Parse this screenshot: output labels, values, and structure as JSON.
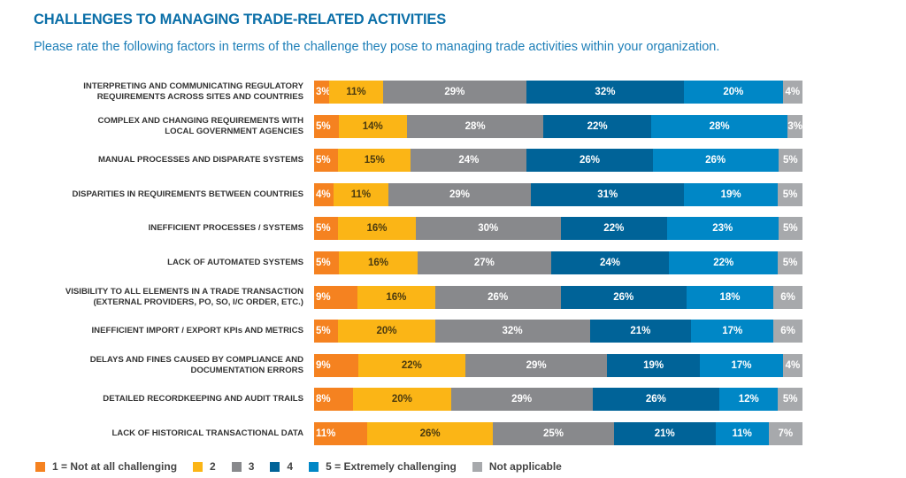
{
  "title": "CHALLENGES TO MANAGING TRADE-RELATED ACTIVITIES",
  "subtitle": "Please rate the following factors in terms of the challenge they pose to managing trade activities within your organization.",
  "chart_data": {
    "type": "bar",
    "stacked": true,
    "orientation": "horizontal",
    "title": "CHALLENGES TO MANAGING TRADE-RELATED ACTIVITIES",
    "categories": [
      [
        "INTERPRETING AND COMMUNICATING REGULATORY",
        "REQUIREMENTS ACROSS SITES AND COUNTRIES"
      ],
      [
        "COMPLEX AND CHANGING REQUIREMENTS WITH",
        "LOCAL GOVERNMENT AGENCIES"
      ],
      [
        "MANUAL PROCESSES AND DISPARATE SYSTEMS"
      ],
      [
        "DISPARITIES IN REQUIREMENTS BETWEEN COUNTRIES"
      ],
      [
        "INEFFICIENT PROCESSES / SYSTEMS"
      ],
      [
        "LACK OF AUTOMATED SYSTEMS"
      ],
      [
        "VISIBILITY TO ALL ELEMENTS IN A TRADE TRANSACTION",
        "(EXTERNAL PROVIDERS, PO, SO, I/C ORDER, ETC.)"
      ],
      [
        "INEFFICIENT IMPORT / EXPORT KPIs AND METRICS"
      ],
      [
        "DELAYS AND FINES CAUSED BY COMPLIANCE AND",
        "DOCUMENTATION ERRORS"
      ],
      [
        "DETAILED RECORDKEEPING AND AUDIT TRAILS"
      ],
      [
        "LACK OF HISTORICAL TRANSACTIONAL DATA"
      ]
    ],
    "series": [
      {
        "name": "1 = Not at all challenging",
        "color": "#f58220",
        "values": [
          3,
          5,
          5,
          4,
          5,
          5,
          9,
          5,
          9,
          8,
          11
        ]
      },
      {
        "name": "2",
        "color": "#fbb516",
        "values": [
          11,
          14,
          15,
          11,
          16,
          16,
          16,
          20,
          22,
          20,
          26
        ]
      },
      {
        "name": "3",
        "color": "#88898c",
        "values": [
          29,
          28,
          24,
          29,
          30,
          27,
          26,
          32,
          29,
          29,
          25
        ]
      },
      {
        "name": "4",
        "color": "#006398",
        "values": [
          32,
          22,
          26,
          31,
          22,
          24,
          26,
          21,
          19,
          26,
          21
        ]
      },
      {
        "name": "5 = Extremely challenging",
        "color": "#0087c6",
        "values": [
          20,
          28,
          26,
          19,
          23,
          22,
          18,
          17,
          17,
          12,
          11
        ]
      },
      {
        "name": "Not applicable",
        "color": "#a7a9ac",
        "values": [
          4,
          3,
          5,
          5,
          5,
          5,
          6,
          6,
          4,
          5,
          7
        ]
      }
    ],
    "unit": "%",
    "legend": "bottom"
  }
}
